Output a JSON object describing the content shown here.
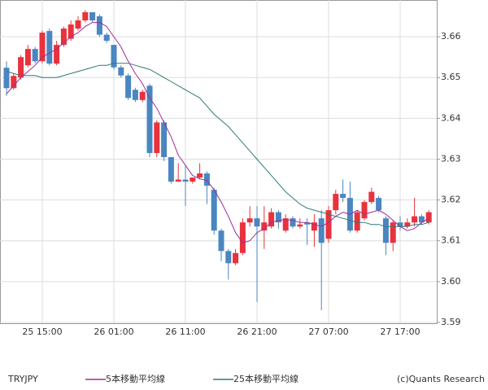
{
  "chart_data": {
    "type": "candlestick",
    "symbol": "TRYJPY",
    "credit": "(c)Quants Research",
    "categories": [
      null,
      null,
      null,
      null,
      null,
      "25 15:00",
      null,
      null,
      null,
      null,
      null,
      null,
      null,
      null,
      null,
      "26 01:00",
      null,
      null,
      null,
      null,
      null,
      null,
      null,
      null,
      null,
      "26 11:00",
      null,
      null,
      null,
      null,
      null,
      null,
      null,
      null,
      null,
      "26 21:00",
      null,
      null,
      null,
      null,
      null,
      null,
      null,
      null,
      null,
      "27 07:00",
      null,
      null,
      null,
      null,
      null,
      null,
      null,
      null,
      null,
      "27 17:00",
      null,
      null,
      null,
      null
    ],
    "ohlc": {
      "open": [
        3.6524,
        3.6474,
        3.65,
        3.653,
        3.657,
        3.654,
        3.6614,
        3.6534,
        3.658,
        3.6595,
        3.662,
        3.664,
        3.666,
        3.665,
        3.6605,
        3.658,
        3.6525,
        3.6505,
        3.647,
        3.6445,
        3.648,
        3.6315,
        3.639,
        3.6305,
        3.6245,
        3.625,
        3.6245,
        3.6255,
        3.6265,
        3.6225,
        3.6125,
        3.6075,
        3.6045,
        3.607,
        3.6145,
        3.6155,
        3.6125,
        3.6135,
        3.617,
        3.6125,
        3.6155,
        3.6135,
        3.6145,
        3.6125,
        3.6155,
        3.6105,
        3.6175,
        3.6215,
        3.6205,
        3.6125,
        3.6155,
        3.6195,
        3.6205,
        3.6155,
        3.6095,
        3.6145,
        3.6135,
        3.6145,
        3.616,
        3.6145
      ],
      "high": [
        3.654,
        3.651,
        3.6555,
        3.658,
        3.6575,
        3.6615,
        3.662,
        3.659,
        3.6625,
        3.664,
        3.665,
        3.6665,
        3.666,
        3.6655,
        3.661,
        3.658,
        3.653,
        3.651,
        3.6475,
        3.647,
        3.6485,
        3.6395,
        3.6395,
        3.6305,
        3.629,
        3.6285,
        3.6255,
        3.629,
        3.627,
        3.623,
        3.613,
        3.608,
        3.608,
        3.6155,
        3.6185,
        3.6185,
        3.6185,
        3.618,
        3.6175,
        3.6165,
        3.616,
        3.6155,
        3.6155,
        3.6165,
        3.6175,
        3.6185,
        3.6225,
        3.625,
        3.6245,
        3.6175,
        3.62,
        3.623,
        3.621,
        3.616,
        3.615,
        3.616,
        3.6155,
        3.6205,
        3.6165,
        3.6175
      ],
      "low": [
        3.6455,
        3.647,
        3.6495,
        3.6525,
        3.6535,
        3.6535,
        3.653,
        3.653,
        3.6575,
        3.659,
        3.6615,
        3.6635,
        3.6635,
        3.66,
        3.6585,
        3.652,
        3.65,
        3.6445,
        3.644,
        3.644,
        3.6305,
        3.6305,
        3.6295,
        3.624,
        3.6245,
        3.6185,
        3.624,
        3.625,
        3.619,
        3.6115,
        3.605,
        3.6005,
        3.604,
        3.6065,
        3.6135,
        3.595,
        3.608,
        3.613,
        3.613,
        3.612,
        3.613,
        3.613,
        3.609,
        3.6085,
        3.593,
        3.6095,
        3.6165,
        3.6195,
        3.612,
        3.612,
        3.615,
        3.619,
        3.617,
        3.6065,
        3.6075,
        3.6125,
        3.613,
        3.6135,
        3.614,
        3.614
      ],
      "close": [
        3.6474,
        3.6504,
        3.655,
        3.657,
        3.654,
        3.661,
        3.6534,
        3.658,
        3.662,
        3.663,
        3.664,
        3.666,
        3.664,
        3.6605,
        3.659,
        3.6525,
        3.6505,
        3.645,
        3.6445,
        3.6465,
        3.6315,
        3.639,
        3.6305,
        3.6245,
        3.625,
        3.6245,
        3.6255,
        3.6265,
        3.6235,
        3.6125,
        3.6075,
        3.6045,
        3.607,
        3.6145,
        3.6155,
        3.6135,
        3.6145,
        3.617,
        3.6145,
        3.6155,
        3.6135,
        3.614,
        3.614,
        3.6145,
        3.6095,
        3.6175,
        3.6215,
        3.6205,
        3.6125,
        3.617,
        3.6195,
        3.622,
        3.6175,
        3.6095,
        3.6145,
        3.6135,
        3.6145,
        3.616,
        3.6145,
        3.617
      ]
    },
    "up_color": "#e8323c",
    "down_color": "#4a86c0",
    "series": [
      {
        "name": "5本移動平均線",
        "color": "#9b2d9b",
        "values": [
          3.646,
          3.648,
          3.65,
          3.6515,
          3.653,
          3.655,
          3.656,
          3.657,
          3.6585,
          3.66,
          3.661,
          3.6625,
          3.6635,
          3.6635,
          3.6625,
          3.66,
          3.6575,
          3.654,
          3.651,
          3.6485,
          3.645,
          3.6425,
          3.639,
          3.6355,
          3.631,
          3.6285,
          3.626,
          3.6252,
          3.6248,
          3.6225,
          3.6195,
          3.616,
          3.612,
          3.6095,
          3.61,
          3.612,
          3.613,
          3.6145,
          3.615,
          3.6152,
          3.615,
          3.6145,
          3.6145,
          3.614,
          3.6135,
          3.6145,
          3.616,
          3.617,
          3.6165,
          3.6175,
          3.6165,
          3.617,
          3.6175,
          3.6165,
          3.615,
          3.6135,
          3.6125,
          3.613,
          3.6145,
          3.6155
        ]
      },
      {
        "name": "25本移動平均線",
        "color": "#2f7a78",
        "values": [
          3.6515,
          3.651,
          3.6505,
          3.6505,
          3.6505,
          3.65,
          3.65,
          3.65,
          3.6505,
          3.651,
          3.6515,
          3.652,
          3.6525,
          3.653,
          3.653,
          3.6535,
          3.6535,
          3.6535,
          3.653,
          3.6525,
          3.652,
          3.651,
          3.65,
          3.649,
          3.648,
          3.647,
          3.646,
          3.645,
          3.643,
          3.641,
          3.6395,
          3.638,
          3.636,
          3.634,
          3.632,
          3.63,
          3.628,
          3.626,
          3.624,
          3.622,
          3.6205,
          3.619,
          3.618,
          3.6175,
          3.617,
          3.6165,
          3.616,
          3.6155,
          3.615,
          3.6145,
          3.6145,
          3.614,
          3.614,
          3.6135,
          3.6135,
          3.6135,
          3.6135,
          3.614,
          3.614,
          3.6145
        ]
      }
    ],
    "ylim": [
      3.5898,
      3.669
    ],
    "yticks": [
      3.66,
      3.65,
      3.64,
      3.63,
      3.62,
      3.61,
      {
        "value": 3.6,
        "label": "3.60"
      },
      3.59
    ],
    "grid": true
  }
}
